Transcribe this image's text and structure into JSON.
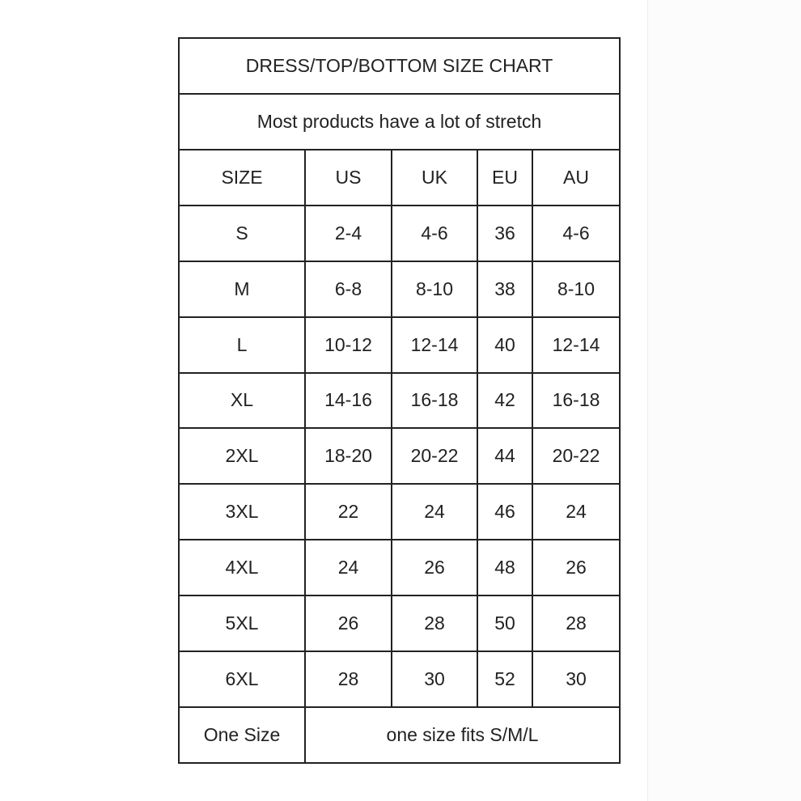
{
  "title": "DRESS/TOP/BOTTOM SIZE CHART",
  "subtitle": "Most products have a lot of stretch",
  "headers": [
    "SIZE",
    "US",
    "UK",
    "EU",
    "AU"
  ],
  "rows": [
    [
      "S",
      "2-4",
      "4-6",
      "36",
      "4-6"
    ],
    [
      "M",
      "6-8",
      "8-10",
      "38",
      "8-10"
    ],
    [
      "L",
      "10-12",
      "12-14",
      "40",
      "12-14"
    ],
    [
      "XL",
      "14-16",
      "16-18",
      "42",
      "16-18"
    ],
    [
      "2XL",
      "18-20",
      "20-22",
      "44",
      "20-22"
    ],
    [
      "3XL",
      "22",
      "24",
      "46",
      "24"
    ],
    [
      "4XL",
      "24",
      "26",
      "48",
      "26"
    ],
    [
      "5XL",
      "26",
      "28",
      "50",
      "28"
    ],
    [
      "6XL",
      "28",
      "30",
      "52",
      "30"
    ]
  ],
  "one_size": {
    "label": "One Size",
    "note": "one size fits S/M/L"
  }
}
